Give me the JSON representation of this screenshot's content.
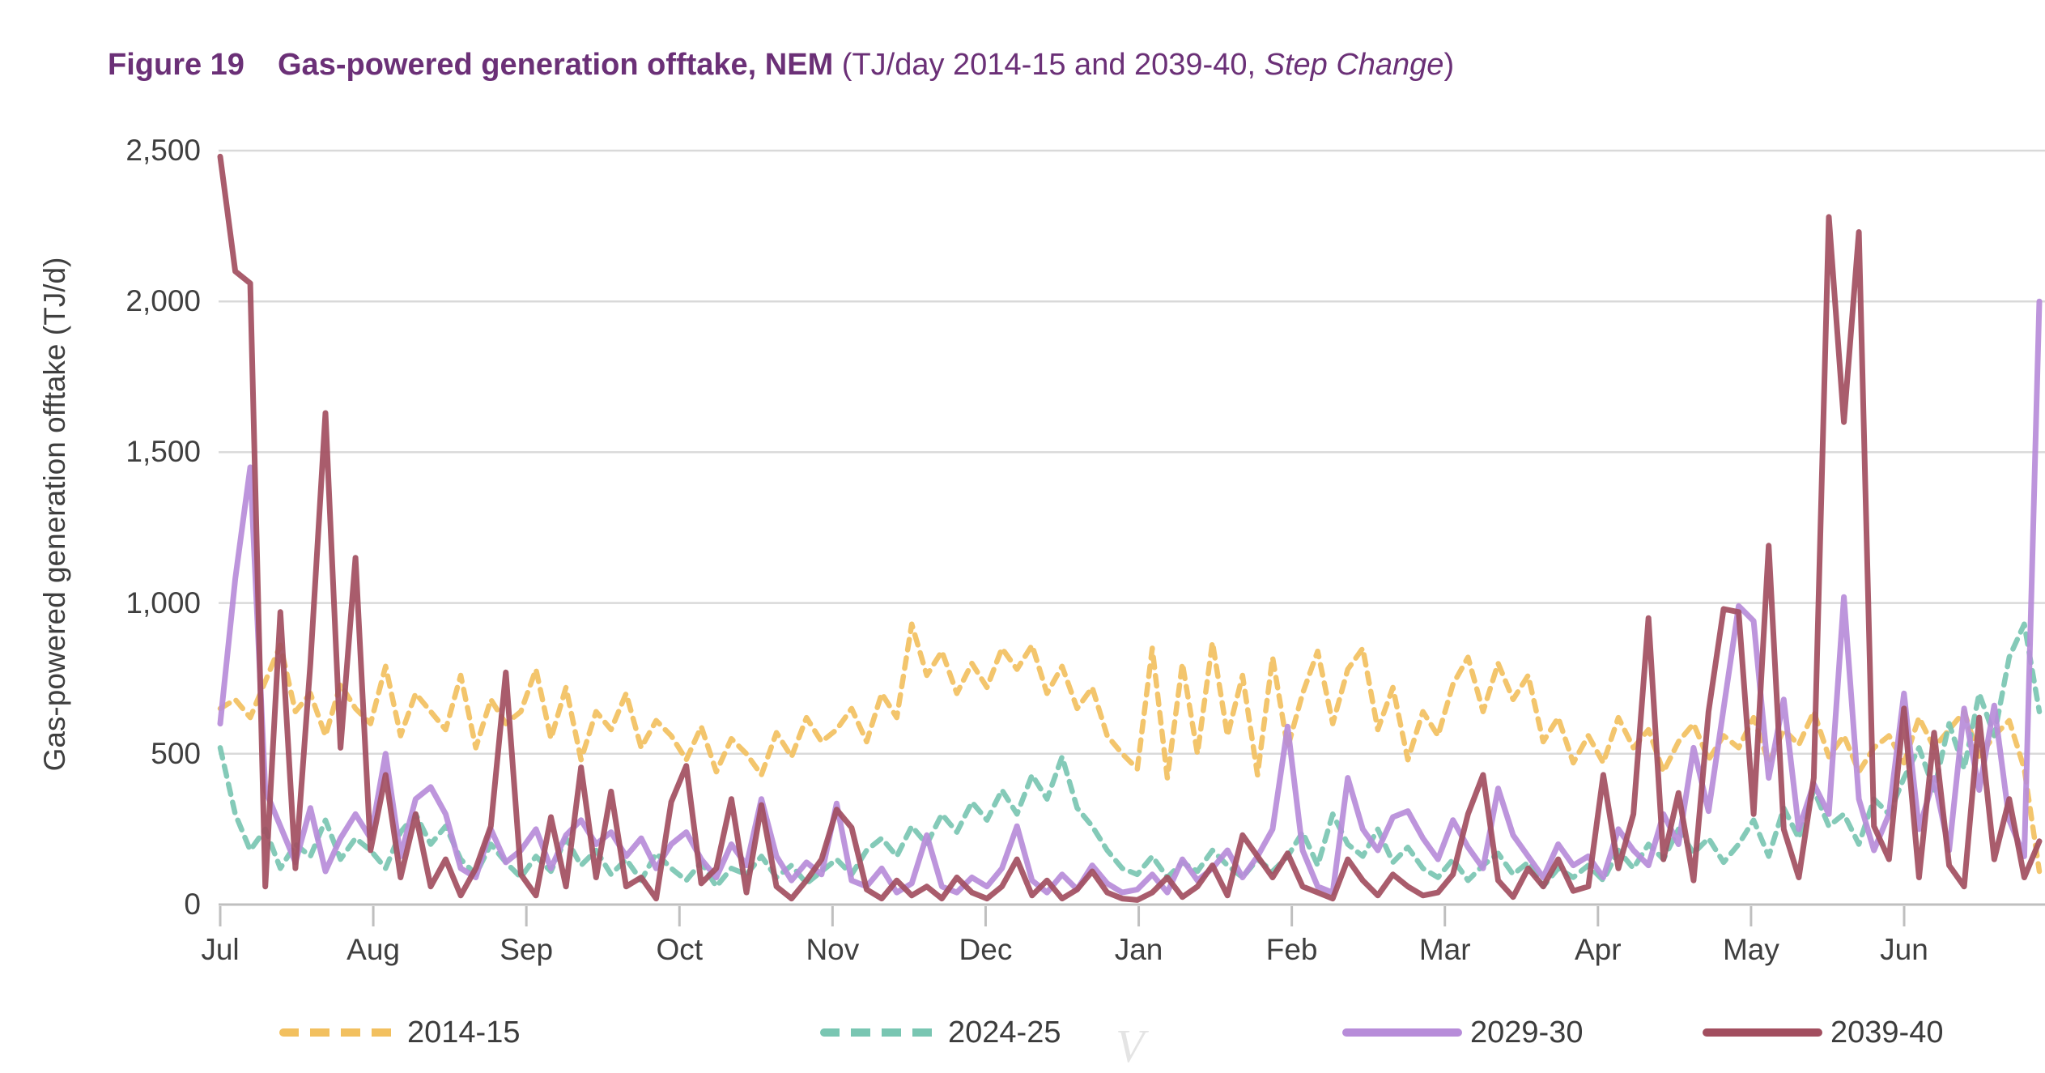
{
  "title": {
    "figure_label": "Figure 19",
    "main": "Gas-powered generation offtake, NEM",
    "subtitle_prefix": " (TJ/day 2014-15 and 2039-40, ",
    "subtitle_italic": "Step Change",
    "subtitle_suffix": ")"
  },
  "colors": {
    "title_text": "#6b3077",
    "axis_text": "#3f3f3f",
    "gridline": "#d9d9d9",
    "axis_line": "#bfbfbf",
    "series_2014_15": "#f2c05f",
    "series_2024_25": "#79c6b2",
    "series_2029_30": "#b78cd9",
    "series_2039_40": "#a24e5f"
  },
  "watermark": {
    "text": "V"
  },
  "chart_data": {
    "type": "line",
    "title": "Gas-powered generation offtake, NEM (TJ/day 2014-15 and 2039-40, Step Change)",
    "xlabel": "",
    "ylabel": "Gas-powered generation offtake (TJ/d)",
    "ylim": [
      0,
      2500
    ],
    "ytick_step": 500,
    "ytick_labels": [
      "0",
      "500",
      "1,000",
      "1,500",
      "2,000",
      "2,500"
    ],
    "x_months": [
      "Jul",
      "Aug",
      "Sep",
      "Oct",
      "Nov",
      "Dec",
      "Jan",
      "Feb",
      "Mar",
      "Apr",
      "May",
      "Jun"
    ],
    "x_sampling": "daily values shown; arrays below sampled every 3 days starting 1 July (122 points)",
    "sample_step_days": 3,
    "grid": "horizontal",
    "legend_position": "bottom",
    "series": [
      {
        "name": "2014-15",
        "style": "dashed",
        "color": "#f2c05f",
        "values": [
          650,
          680,
          620,
          740,
          860,
          640,
          700,
          560,
          730,
          650,
          600,
          790,
          560,
          700,
          640,
          580,
          760,
          520,
          680,
          600,
          640,
          780,
          550,
          720,
          480,
          640,
          580,
          700,
          520,
          610,
          560,
          480,
          590,
          440,
          550,
          500,
          430,
          570,
          490,
          620,
          540,
          580,
          650,
          540,
          700,
          620,
          930,
          760,
          840,
          700,
          800,
          720,
          850,
          780,
          860,
          700,
          790,
          650,
          720,
          560,
          500,
          450,
          850,
          420,
          800,
          500,
          870,
          560,
          760,
          430,
          820,
          520,
          700,
          840,
          600,
          780,
          850,
          580,
          720,
          480,
          640,
          560,
          730,
          820,
          640,
          800,
          680,
          760,
          540,
          620,
          470,
          560,
          470,
          620,
          520,
          580,
          440,
          540,
          600,
          480,
          560,
          520,
          620,
          470,
          580,
          530,
          640,
          490,
          560,
          440,
          520,
          560,
          470,
          620,
          520,
          580,
          640,
          490,
          560,
          610,
          450,
          110
        ]
      },
      {
        "name": "2024-25",
        "style": "dashed",
        "color": "#79c6b2",
        "values": [
          520,
          300,
          180,
          250,
          120,
          200,
          160,
          280,
          150,
          220,
          180,
          120,
          240,
          300,
          200,
          260,
          150,
          100,
          200,
          140,
          90,
          160,
          110,
          220,
          130,
          180,
          100,
          150,
          80,
          170,
          120,
          80,
          140,
          60,
          120,
          100,
          160,
          90,
          130,
          70,
          110,
          150,
          100,
          180,
          220,
          160,
          260,
          200,
          300,
          240,
          340,
          280,
          380,
          300,
          430,
          350,
          490,
          320,
          260,
          180,
          120,
          100,
          160,
          90,
          140,
          110,
          180,
          130,
          90,
          150,
          110,
          160,
          240,
          130,
          300,
          200,
          160,
          250,
          140,
          190,
          120,
          90,
          150,
          80,
          130,
          170,
          100,
          140,
          60,
          120,
          90,
          130,
          80,
          180,
          120,
          200,
          150,
          250,
          170,
          220,
          140,
          200,
          280,
          160,
          320,
          220,
          380,
          260,
          300,
          200,
          350,
          300,
          420,
          520,
          380,
          600,
          450,
          700,
          560,
          820,
          930,
          640
        ]
      },
      {
        "name": "2029-30",
        "style": "solid",
        "color": "#b78cd9",
        "values": [
          600,
          1080,
          1450,
          380,
          260,
          140,
          320,
          110,
          220,
          300,
          220,
          500,
          160,
          350,
          390,
          300,
          120,
          90,
          250,
          140,
          180,
          250,
          120,
          230,
          280,
          200,
          240,
          160,
          220,
          120,
          200,
          240,
          150,
          90,
          200,
          130,
          350,
          160,
          80,
          140,
          100,
          335,
          80,
          60,
          120,
          40,
          70,
          230,
          60,
          40,
          90,
          60,
          120,
          260,
          80,
          40,
          100,
          50,
          130,
          70,
          40,
          50,
          100,
          40,
          150,
          80,
          120,
          180,
          90,
          160,
          250,
          590,
          180,
          60,
          40,
          420,
          250,
          180,
          290,
          310,
          220,
          150,
          280,
          190,
          120,
          385,
          230,
          160,
          90,
          200,
          130,
          160,
          90,
          250,
          180,
          130,
          300,
          200,
          520,
          310,
          650,
          990,
          940,
          420,
          680,
          250,
          400,
          300,
          1020,
          350,
          180,
          300,
          700,
          250,
          420,
          180,
          650,
          380,
          660,
          280,
          160,
          2000
        ]
      },
      {
        "name": "2039-40",
        "style": "solid",
        "color": "#a24e5f",
        "values": [
          2480,
          2100,
          2060,
          60,
          970,
          120,
          800,
          1630,
          520,
          1150,
          180,
          430,
          90,
          300,
          60,
          150,
          30,
          120,
          260,
          770,
          100,
          30,
          290,
          60,
          455,
          90,
          375,
          60,
          90,
          20,
          340,
          460,
          70,
          120,
          350,
          40,
          330,
          60,
          20,
          80,
          150,
          315,
          255,
          50,
          20,
          80,
          30,
          60,
          20,
          90,
          40,
          20,
          60,
          150,
          30,
          80,
          20,
          50,
          110,
          40,
          20,
          15,
          40,
          90,
          25,
          60,
          130,
          30,
          230,
          160,
          90,
          170,
          60,
          40,
          20,
          150,
          80,
          30,
          100,
          60,
          30,
          40,
          100,
          300,
          430,
          80,
          25,
          120,
          60,
          150,
          45,
          60,
          430,
          120,
          300,
          950,
          150,
          370,
          80,
          640,
          980,
          970,
          300,
          1190,
          250,
          90,
          420,
          2280,
          1600,
          2230,
          260,
          150,
          650,
          90,
          570,
          130,
          60,
          620,
          150,
          350,
          90,
          210
        ]
      }
    ]
  }
}
